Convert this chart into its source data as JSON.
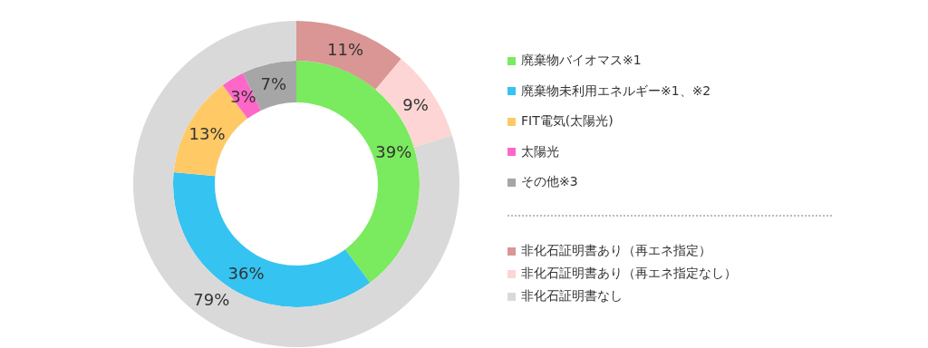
{
  "chart_data": [
    {
      "type": "donut",
      "categories": [
        "廃棄物バイオマス※1",
        "廃棄物未利用エネルギー※1、※2",
        "FIT電気(太陽光)",
        "太陽光",
        "その他※3"
      ],
      "values": [
        39,
        36,
        13,
        3,
        7
      ],
      "value_labels": [
        "39%",
        "36%",
        "13%",
        "3%",
        "7%"
      ],
      "colors": [
        "#7aea5e",
        "#35c3f2",
        "#ffc966",
        "#fe67c8",
        "#a6a6a6"
      ],
      "legend": "right"
    },
    {
      "type": "donut",
      "categories": [
        "非化石証明書あり（再エネ指定）",
        "非化石証明書あり（再エネ指定なし）",
        "非化石証明書なし"
      ],
      "values": [
        11,
        9,
        79
      ],
      "value_labels": [
        "11%",
        "9%",
        "79%"
      ],
      "colors": [
        "#d99694",
        "#fcd5d4",
        "#d9d9d9"
      ],
      "legend": "right"
    }
  ]
}
